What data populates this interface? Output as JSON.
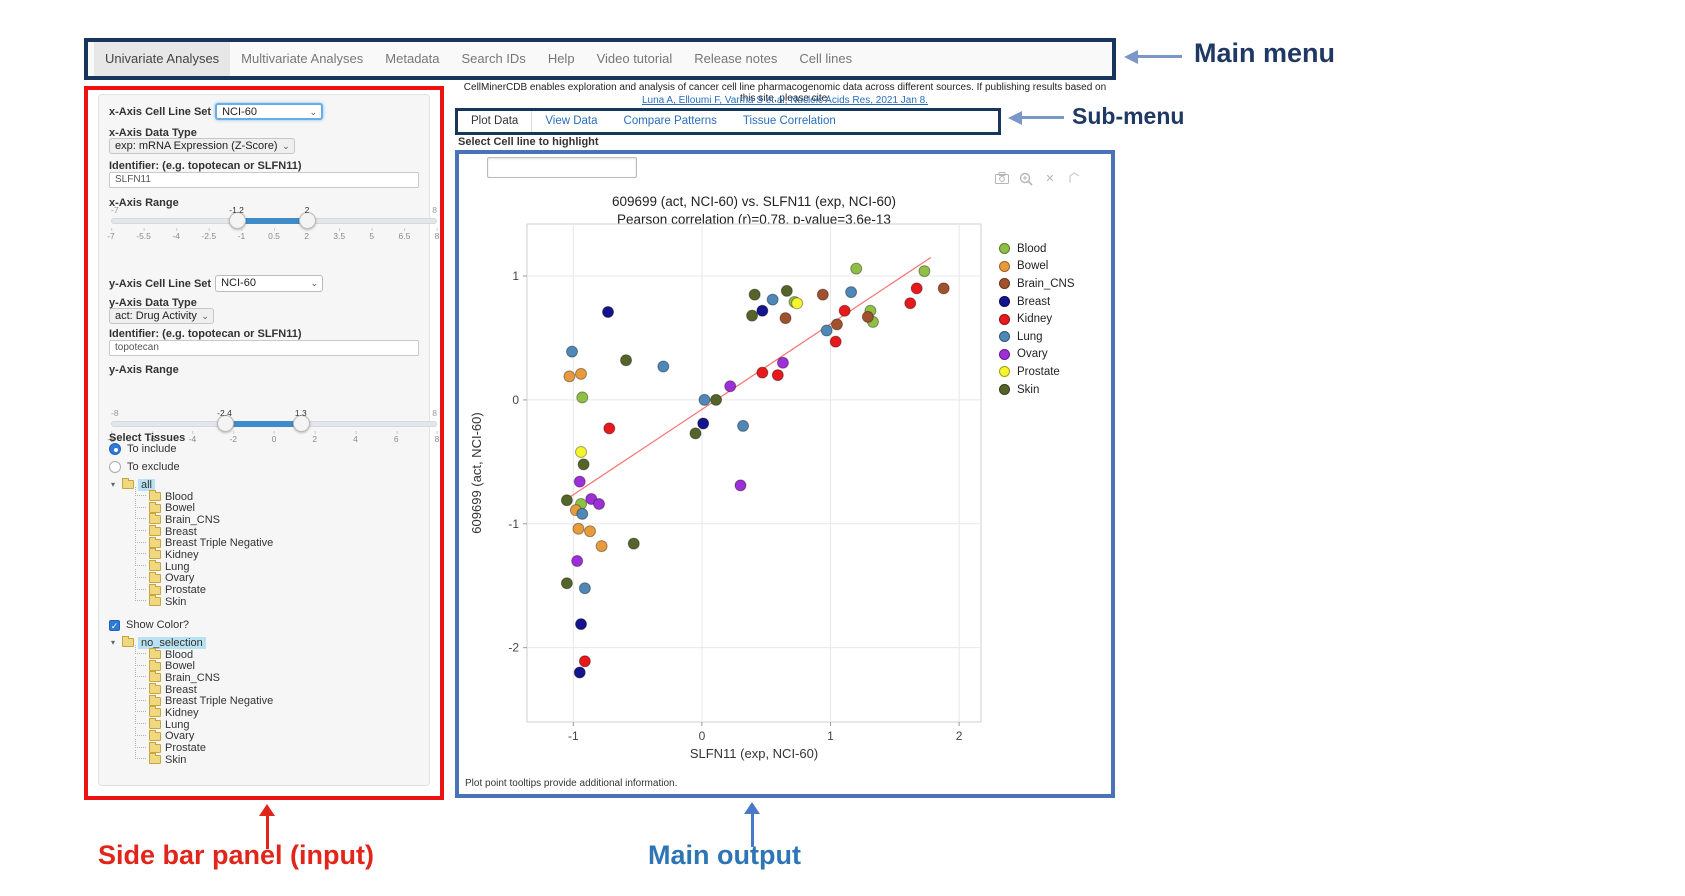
{
  "annotations": {
    "main_menu_label": "Main menu",
    "sub_menu_label": "Sub-menu",
    "sidebar_label": "Side bar panel (input)",
    "main_output_label": "Main output",
    "colors": {
      "red": "#e1251b",
      "navy": "#1f3864",
      "output_blue": "#2e75b6",
      "arrow_blue": "#7b96c8"
    }
  },
  "main_menu": {
    "items": [
      {
        "label": "Univariate Analyses",
        "active": true
      },
      {
        "label": "Multivariate Analyses",
        "active": false
      },
      {
        "label": "Metadata",
        "active": false
      },
      {
        "label": "Search IDs",
        "active": false
      },
      {
        "label": "Help",
        "active": false
      },
      {
        "label": "Video tutorial",
        "active": false
      },
      {
        "label": "Release notes",
        "active": false
      },
      {
        "label": "Cell lines",
        "active": false
      }
    ]
  },
  "citation": {
    "text": "CellMinerCDB enables exploration and analysis of cancer cell line pharmacogenomic data across different sources. If publishing results based on this site, please cite:",
    "link": "Luna A, Elloumi F, Varma S et al, Nucleic Acids Res, 2021 Jan 8."
  },
  "sub_menu": {
    "tabs": [
      {
        "label": "Plot Data",
        "active": true
      },
      {
        "label": "View Data",
        "active": false
      },
      {
        "label": "Compare Patterns",
        "active": false
      },
      {
        "label": "Tissue Correlation",
        "active": false
      }
    ]
  },
  "sidebar": {
    "x_axis": {
      "cell_line_set_label": "x-Axis Cell Line Set",
      "cell_line_set_value": "NCI-60",
      "data_type_label": "x-Axis Data Type",
      "data_type_value": "exp: mRNA Expression (Z-Score)",
      "identifier_label": "Identifier: (e.g. topotecan or SLFN11)",
      "identifier_value": "SLFN11",
      "range_label": "x-Axis Range",
      "range": {
        "min": -7,
        "max": 8,
        "from": -1.2,
        "to": 2,
        "from_label": "-1.2",
        "to_label": "2",
        "min_label": "-7",
        "max_label": "8",
        "ticks": [
          "-7",
          "-5.5",
          "-4",
          "-2.5",
          "-1",
          "0.5",
          "2",
          "3.5",
          "5",
          "6.5",
          "8"
        ]
      }
    },
    "y_axis": {
      "cell_line_set_label": "y-Axis Cell Line Set",
      "cell_line_set_value": "NCI-60",
      "data_type_label": "y-Axis Data Type",
      "data_type_value": "act: Drug Activity",
      "identifier_label": "Identifier: (e.g. topotecan or SLFN11)",
      "identifier_value": "topotecan",
      "range_label": "y-Axis Range",
      "range": {
        "min": -8,
        "max": 8,
        "from": -2.4,
        "to": 1.3,
        "from_label": "-2.4",
        "to_label": "1.3",
        "min_label": "-8",
        "max_label": "8",
        "ticks": [
          "-8",
          "-6",
          "-4",
          "-2",
          "0",
          "2",
          "4",
          "6",
          "8"
        ]
      }
    },
    "select_tissues": {
      "label": "Select Tissues",
      "options": [
        {
          "label": "To include",
          "selected": true
        },
        {
          "label": "To exclude",
          "selected": false
        }
      ]
    },
    "tissue_tree": {
      "root": "all",
      "children": [
        "Blood",
        "Bowel",
        "Brain_CNS",
        "Breast",
        "Breast Triple Negative",
        "Kidney",
        "Lung",
        "Ovary",
        "Prostate",
        "Skin"
      ]
    },
    "show_color_label": "Show Color?",
    "show_color_checked": true,
    "color_tree": {
      "root": "no_selection",
      "children": [
        "Blood",
        "Bowel",
        "Brain_CNS",
        "Breast",
        "Breast Triple Negative",
        "Kidney",
        "Lung",
        "Ovary",
        "Prostate",
        "Skin"
      ]
    }
  },
  "main_output": {
    "highlight_label": "Select Cell line to highlight",
    "highlight_value": "",
    "footer_note": "Plot point tooltips provide additional information.",
    "modebar_icons": [
      "camera-icon",
      "zoom-in-icon",
      "close-icon",
      "reset-axes-icon"
    ]
  },
  "chart_data": {
    "type": "scatter",
    "title": "609699 (act, NCI-60) vs. SLFN11 (exp, NCI-60)",
    "subtitle": "Pearson correlation (r)=0.78, p-value=3.6e-13",
    "xlabel": "SLFN11 (exp, NCI-60)",
    "ylabel": "609699 (act, NCI-60)",
    "xlim": [
      -1.36,
      2.17
    ],
    "ylim": [
      -2.6,
      1.42
    ],
    "xticks": [
      -1,
      0,
      1,
      2
    ],
    "yticks": [
      -2,
      -1,
      0,
      1
    ],
    "grid": true,
    "legend_position": "right",
    "regression_line": {
      "x1": -1.05,
      "y1": -0.8,
      "x2": 1.78,
      "y2": 1.15,
      "color": "#f4736f"
    },
    "series": [
      {
        "name": "Blood",
        "color": "#8fbf44",
        "points": [
          [
            -0.93,
            0.02
          ],
          [
            1.2,
            1.06
          ],
          [
            1.73,
            1.04
          ],
          [
            0.72,
            0.79
          ],
          [
            1.31,
            0.72
          ],
          [
            1.33,
            0.63
          ],
          [
            -0.94,
            -0.84
          ]
        ]
      },
      {
        "name": "Bowel",
        "color": "#e89b3c",
        "points": [
          [
            -1.03,
            0.19
          ],
          [
            -0.94,
            0.21
          ],
          [
            -0.98,
            -0.89
          ],
          [
            -0.96,
            -1.04
          ],
          [
            -0.87,
            -1.06
          ],
          [
            -0.78,
            -1.18
          ]
        ]
      },
      {
        "name": "Brain_CNS",
        "color": "#a0522d",
        "points": [
          [
            0.65,
            0.66
          ],
          [
            0.94,
            0.85
          ],
          [
            1.05,
            0.61
          ],
          [
            1.29,
            0.67
          ],
          [
            1.88,
            0.9
          ]
        ]
      },
      {
        "name": "Breast",
        "color": "#14148c",
        "points": [
          [
            -0.73,
            0.71
          ],
          [
            0.47,
            0.72
          ],
          [
            0.01,
            -0.19
          ],
          [
            -0.94,
            -1.81
          ],
          [
            -0.95,
            -2.2
          ]
        ]
      },
      {
        "name": "Kidney",
        "color": "#e8191c",
        "points": [
          [
            -0.72,
            -0.23
          ],
          [
            1.11,
            0.72
          ],
          [
            1.04,
            0.47
          ],
          [
            1.62,
            0.78
          ],
          [
            1.67,
            0.9
          ],
          [
            0.47,
            0.22
          ],
          [
            0.59,
            0.2
          ],
          [
            -0.91,
            -2.11
          ]
        ]
      },
      {
        "name": "Lung",
        "color": "#4f87b7",
        "points": [
          [
            -1.01,
            0.39
          ],
          [
            -0.3,
            0.27
          ],
          [
            0.02,
            0.0
          ],
          [
            0.32,
            -0.21
          ],
          [
            0.55,
            0.81
          ],
          [
            1.16,
            0.87
          ],
          [
            0.97,
            0.56
          ],
          [
            -0.93,
            -0.92
          ],
          [
            -0.91,
            -1.52
          ]
        ]
      },
      {
        "name": "Ovary",
        "color": "#9d2fd6",
        "points": [
          [
            0.22,
            0.11
          ],
          [
            0.63,
            0.3
          ],
          [
            -0.95,
            -0.66
          ],
          [
            0.3,
            -0.69
          ],
          [
            -0.86,
            -0.8
          ],
          [
            -0.8,
            -0.84
          ],
          [
            -0.97,
            -1.3
          ]
        ]
      },
      {
        "name": "Prostate",
        "color": "#f5f52e",
        "points": [
          [
            0.74,
            0.78
          ],
          [
            -0.94,
            -0.42
          ]
        ]
      },
      {
        "name": "Skin",
        "color": "#55652a",
        "points": [
          [
            -0.59,
            0.32
          ],
          [
            0.11,
            0.0
          ],
          [
            -0.05,
            -0.27
          ],
          [
            0.41,
            0.85
          ],
          [
            0.66,
            0.88
          ],
          [
            0.39,
            0.68
          ],
          [
            -0.92,
            -0.52
          ],
          [
            -1.05,
            -0.81
          ],
          [
            -0.53,
            -1.16
          ],
          [
            -1.05,
            -1.48
          ]
        ]
      }
    ]
  }
}
